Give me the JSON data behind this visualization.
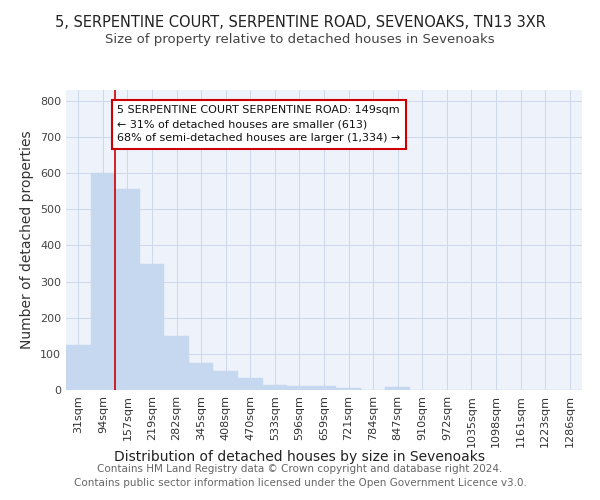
{
  "title": "5, SERPENTINE COURT, SERPENTINE ROAD, SEVENOAKS, TN13 3XR",
  "subtitle": "Size of property relative to detached houses in Sevenoaks",
  "xlabel": "Distribution of detached houses by size in Sevenoaks",
  "ylabel": "Number of detached properties",
  "categories": [
    "31sqm",
    "94sqm",
    "157sqm",
    "219sqm",
    "282sqm",
    "345sqm",
    "408sqm",
    "470sqm",
    "533sqm",
    "596sqm",
    "659sqm",
    "721sqm",
    "784sqm",
    "847sqm",
    "910sqm",
    "972sqm",
    "1035sqm",
    "1098sqm",
    "1161sqm",
    "1223sqm",
    "1286sqm"
  ],
  "values": [
    125,
    600,
    555,
    348,
    150,
    75,
    52,
    33,
    15,
    12,
    10,
    5,
    0,
    8,
    0,
    0,
    0,
    0,
    0,
    0,
    0
  ],
  "bar_color": "#c5d8f0",
  "bar_edge_color": "#c5d8f0",
  "ref_line_color": "#cc0000",
  "annotation_line1": "5 SERPENTINE COURT SERPENTINE ROAD: 149sqm",
  "annotation_line2": "← 31% of detached houses are smaller (613)",
  "annotation_line3": "68% of semi-detached houses are larger (1,334) →",
  "annotation_box_facecolor": "#ffffff",
  "annotation_box_edgecolor": "#cc0000",
  "ylim": [
    0,
    830
  ],
  "yticks": [
    0,
    100,
    200,
    300,
    400,
    500,
    600,
    700,
    800
  ],
  "footer": "Contains HM Land Registry data © Crown copyright and database right 2024.\nContains public sector information licensed under the Open Government Licence v3.0.",
  "title_fontsize": 10.5,
  "subtitle_fontsize": 9.5,
  "axis_label_fontsize": 10,
  "tick_fontsize": 8,
  "annotation_fontsize": 8,
  "footer_fontsize": 7.5,
  "plot_bg_color": "#eef2fb",
  "fig_bg_color": "#ffffff"
}
